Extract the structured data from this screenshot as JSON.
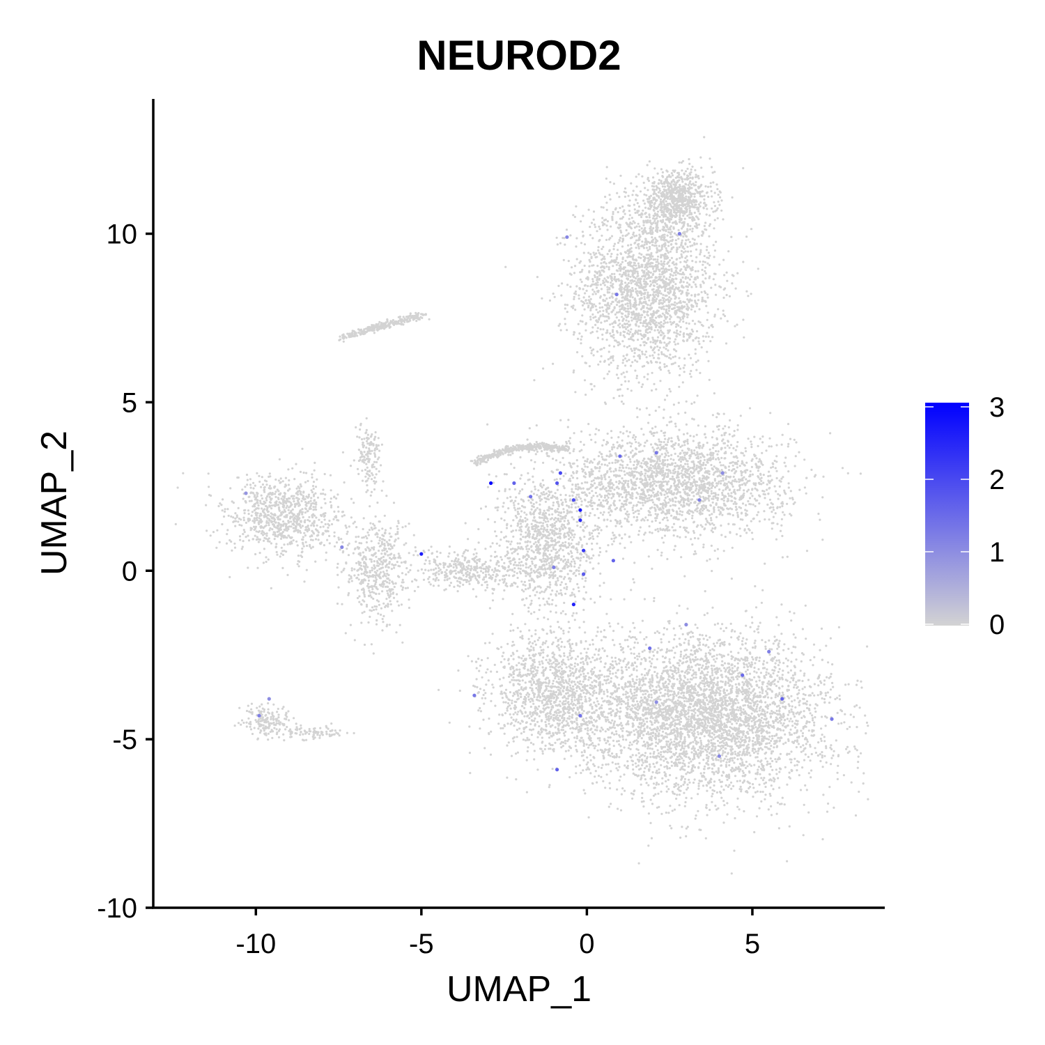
{
  "chart_data": {
    "type": "scatter",
    "title": "NEUROD2",
    "xlabel": "UMAP_1",
    "ylabel": "UMAP_2",
    "xlim": [
      -13.1,
      9.0
    ],
    "ylim": [
      -10.0,
      14.0
    ],
    "xticks": [
      -10,
      -5,
      0,
      5
    ],
    "yticks": [
      -10,
      -5,
      0,
      5,
      10
    ],
    "grid": false,
    "legend": {
      "type": "colorbar",
      "position": "right",
      "min": 0,
      "max": 3,
      "ticks": [
        0,
        1,
        2,
        3
      ],
      "low_color": "#d3d3d3",
      "high_color": "#0000ff"
    },
    "background_point_color": "#d3d3d3",
    "clusters": [
      {
        "region": "upper-branch",
        "center": [
          1.8,
          8.4
        ],
        "spread": [
          1.7,
          2.1
        ],
        "weight": 0.16
      },
      {
        "region": "top-tip",
        "center": [
          2.7,
          11.0
        ],
        "spread": [
          0.9,
          0.7
        ],
        "weight": 0.05
      },
      {
        "region": "central-upper",
        "center": [
          2.6,
          2.6
        ],
        "spread": [
          2.8,
          1.3
        ],
        "weight": 0.16
      },
      {
        "region": "central-left",
        "center": [
          -1.2,
          0.8
        ],
        "spread": [
          1.2,
          1.5
        ],
        "weight": 0.07
      },
      {
        "region": "main-lower",
        "center": [
          3.6,
          -4.3
        ],
        "spread": [
          3.0,
          1.9
        ],
        "weight": 0.3
      },
      {
        "region": "lower-left",
        "center": [
          -1.0,
          -3.6
        ],
        "spread": [
          1.6,
          1.4
        ],
        "weight": 0.09
      },
      {
        "region": "left-cluster",
        "center": [
          -9.2,
          1.6
        ],
        "spread": [
          1.4,
          1.0
        ],
        "weight": 0.06
      },
      {
        "region": "left-neck",
        "center": [
          -6.3,
          0.0
        ],
        "spread": [
          0.8,
          1.3
        ],
        "weight": 0.035
      },
      {
        "region": "left-top-finger",
        "center": [
          -6.6,
          3.4
        ],
        "spread": [
          0.3,
          0.8
        ],
        "weight": 0.01
      },
      {
        "region": "bridge",
        "center": [
          -3.6,
          0.0
        ],
        "spread": [
          1.3,
          0.45
        ],
        "weight": 0.025
      },
      {
        "region": "bottom-left-cluster",
        "center": [
          -9.6,
          -4.5
        ],
        "spread": [
          0.6,
          0.4
        ],
        "weight": 0.012
      },
      {
        "region": "bottom-left-tail",
        "center": [
          -8.2,
          -4.8
        ],
        "spread": [
          0.8,
          0.15
        ],
        "weight": 0.006
      }
    ],
    "arcs": [
      {
        "region": "upper-left-arc",
        "points": [
          [
            -7.4,
            6.9
          ],
          [
            -6.2,
            7.3
          ],
          [
            -4.9,
            7.6
          ]
        ],
        "count": 260
      },
      {
        "region": "middle-arc",
        "points": [
          [
            -3.4,
            3.2
          ],
          [
            -1.9,
            3.9
          ],
          [
            -0.6,
            3.6
          ]
        ],
        "count": 380
      }
    ],
    "expressing_cells": [
      {
        "x": -2.9,
        "y": 2.6,
        "value": 2.9
      },
      {
        "x": -5.0,
        "y": 0.5,
        "value": 2.6
      },
      {
        "x": -0.2,
        "y": 1.5,
        "value": 2.4
      },
      {
        "x": -0.2,
        "y": 1.8,
        "value": 2.7
      },
      {
        "x": -0.4,
        "y": 2.1,
        "value": 1.9
      },
      {
        "x": -0.8,
        "y": 2.9,
        "value": 2.0
      },
      {
        "x": -0.1,
        "y": 0.6,
        "value": 2.2
      },
      {
        "x": -0.4,
        "y": -1.0,
        "value": 2.5
      },
      {
        "x": -0.9,
        "y": 2.6,
        "value": 1.8
      },
      {
        "x": -2.2,
        "y": 2.6,
        "value": 1.6
      },
      {
        "x": -1.7,
        "y": 2.2,
        "value": 1.4
      },
      {
        "x": 0.9,
        "y": 8.2,
        "value": 1.3
      },
      {
        "x": 2.8,
        "y": 10.0,
        "value": 1.2
      },
      {
        "x": -0.6,
        "y": 9.9,
        "value": 1.1
      },
      {
        "x": 1.0,
        "y": 3.4,
        "value": 1.5
      },
      {
        "x": 2.1,
        "y": 3.5,
        "value": 1.3
      },
      {
        "x": 3.4,
        "y": 2.1,
        "value": 1.2
      },
      {
        "x": 4.1,
        "y": 2.9,
        "value": 1.0
      },
      {
        "x": 0.8,
        "y": 0.3,
        "value": 1.6
      },
      {
        "x": -0.1,
        "y": -0.1,
        "value": 1.7
      },
      {
        "x": -1.0,
        "y": 0.1,
        "value": 1.2
      },
      {
        "x": 1.9,
        "y": -2.3,
        "value": 1.4
      },
      {
        "x": 4.7,
        "y": -3.1,
        "value": 1.5
      },
      {
        "x": 5.9,
        "y": -3.8,
        "value": 1.6
      },
      {
        "x": 7.4,
        "y": -4.4,
        "value": 1.3
      },
      {
        "x": 4.0,
        "y": -5.5,
        "value": 1.1
      },
      {
        "x": -0.2,
        "y": -4.3,
        "value": 1.4
      },
      {
        "x": -0.9,
        "y": -5.9,
        "value": 1.6
      },
      {
        "x": -3.4,
        "y": -3.7,
        "value": 1.3
      },
      {
        "x": 2.1,
        "y": -3.9,
        "value": 1.0
      },
      {
        "x": -9.9,
        "y": -4.3,
        "value": 1.2
      },
      {
        "x": -9.6,
        "y": -3.8,
        "value": 1.0
      },
      {
        "x": -7.4,
        "y": 0.7,
        "value": 1.1
      },
      {
        "x": -10.3,
        "y": 2.3,
        "value": 0.9
      },
      {
        "x": 5.5,
        "y": -2.4,
        "value": 1.2
      },
      {
        "x": 3.0,
        "y": -1.6,
        "value": 1.0
      }
    ]
  }
}
